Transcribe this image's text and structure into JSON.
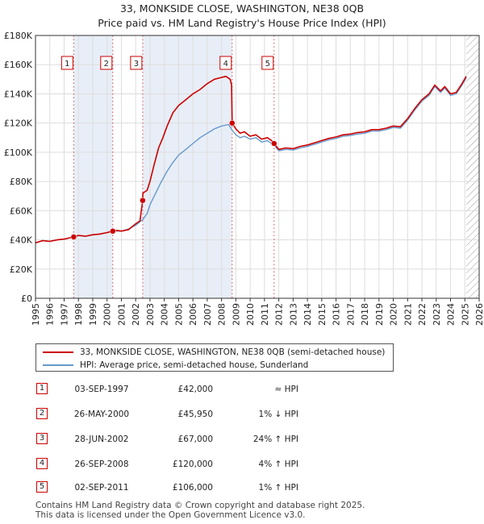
{
  "title_line1": "33, MONKSIDE CLOSE, WASHINGTON, NE38 0QB",
  "title_line2": "Price paid vs. HM Land Registry's House Price Index (HPI)",
  "colors": {
    "property_line": "#cc0000",
    "hpi_line": "#6699cc",
    "grid": "#dddddd",
    "shade": "#e8eef7",
    "marker_box": "#cc0000",
    "hatch": "#999999"
  },
  "chart_data": {
    "type": "line",
    "title": "33, MONKSIDE CLOSE, WASHINGTON, NE38 0QB — Price paid vs. HM Land Registry's House Price Index (HPI)",
    "xlim": [
      1995,
      2026
    ],
    "ylim": [
      0,
      180000
    ],
    "y_ticks": [
      0,
      20000,
      40000,
      60000,
      80000,
      100000,
      120000,
      140000,
      160000,
      180000
    ],
    "y_tick_labels": [
      "£0",
      "£20K",
      "£40K",
      "£60K",
      "£80K",
      "£100K",
      "£120K",
      "£140K",
      "£160K",
      "£180K"
    ],
    "x_ticks": [
      1995,
      1996,
      1997,
      1998,
      1999,
      2000,
      2001,
      2002,
      2003,
      2004,
      2005,
      2006,
      2007,
      2008,
      2009,
      2010,
      2011,
      2012,
      2013,
      2014,
      2015,
      2016,
      2017,
      2018,
      2019,
      2020,
      2021,
      2022,
      2023,
      2024,
      2025,
      2026
    ],
    "x_tick_labels": [
      "1995",
      "1996",
      "1997",
      "1998",
      "1999",
      "2000",
      "2001",
      "2002",
      "2003",
      "2004",
      "2005",
      "2006",
      "2007",
      "2008",
      "2009",
      "2010",
      "2011",
      "2012",
      "2013",
      "2014",
      "2015",
      "2016",
      "2017",
      "2018",
      "2019",
      "2020",
      "2021",
      "2022",
      "2023",
      "2024",
      "2025",
      "2026"
    ],
    "forecast_start": 2025.1,
    "series": [
      {
        "name": "33, MONKSIDE CLOSE, WASHINGTON, NE38 0QB (semi-detached house)",
        "x": [
          1995.0,
          1995.5,
          1996.0,
          1996.5,
          1997.0,
          1997.67,
          1998.0,
          1998.5,
          1999.0,
          1999.5,
          2000.0,
          2000.4,
          2000.7,
          2001.0,
          2001.5,
          2002.0,
          2002.3,
          2002.49,
          2002.5,
          2002.8,
          2003.0,
          2003.3,
          2003.6,
          2003.9,
          2004.2,
          2004.6,
          2005.0,
          2005.5,
          2006.0,
          2006.5,
          2007.0,
          2007.5,
          2007.9,
          2008.3,
          2008.6,
          2008.7,
          2008.74,
          2009.0,
          2009.3,
          2009.6,
          2010.0,
          2010.4,
          2010.8,
          2011.2,
          2011.5,
          2011.67,
          2012.0,
          2012.5,
          2013.0,
          2013.5,
          2014.0,
          2014.5,
          2015.0,
          2015.5,
          2016.0,
          2016.5,
          2017.0,
          2017.5,
          2018.0,
          2018.5,
          2019.0,
          2019.5,
          2020.0,
          2020.5,
          2021.0,
          2021.5,
          2022.0,
          2022.5,
          2022.9,
          2023.3,
          2023.6,
          2024.0,
          2024.4,
          2024.8,
          2025.1
        ],
        "values": [
          38000,
          39500,
          39000,
          40000,
          40500,
          42000,
          43000,
          42500,
          43500,
          44000,
          45000,
          45950,
          46500,
          46000,
          47000,
          51000,
          53000,
          67000,
          72000,
          74000,
          80000,
          92000,
          103000,
          110000,
          118000,
          127000,
          132000,
          136000,
          140000,
          143000,
          147000,
          150000,
          151000,
          152000,
          150000,
          146000,
          120000,
          116000,
          113000,
          114000,
          111000,
          112000,
          109000,
          110000,
          108000,
          106000,
          102000,
          103000,
          102500,
          104000,
          105000,
          106500,
          108000,
          109500,
          110500,
          112000,
          112500,
          113500,
          114000,
          115500,
          115500,
          116500,
          118000,
          117500,
          123000,
          130000,
          136000,
          140000,
          146000,
          142000,
          145000,
          140000,
          141000,
          147000,
          152000
        ]
      },
      {
        "name": "HPI: Average price, semi-detached house, Sunderland",
        "x": [
          1995.0,
          1995.5,
          1996.0,
          1996.5,
          1997.0,
          1997.67,
          1998.0,
          1998.5,
          1999.0,
          1999.5,
          2000.0,
          2000.4,
          2000.7,
          2001.0,
          2001.5,
          2002.0,
          2002.5,
          2002.8,
          2003.0,
          2003.4,
          2003.8,
          2004.2,
          2004.6,
          2005.0,
          2005.5,
          2006.0,
          2006.5,
          2007.0,
          2007.5,
          2008.0,
          2008.5,
          2008.74,
          2009.0,
          2009.3,
          2009.6,
          2010.0,
          2010.4,
          2010.8,
          2011.2,
          2011.5,
          2011.67,
          2012.0,
          2012.5,
          2013.0,
          2013.5,
          2014.0,
          2014.5,
          2015.0,
          2015.5,
          2016.0,
          2016.5,
          2017.0,
          2017.5,
          2018.0,
          2018.5,
          2019.0,
          2019.5,
          2020.0,
          2020.5,
          2021.0,
          2021.5,
          2022.0,
          2022.5,
          2022.9,
          2023.3,
          2023.6,
          2024.0,
          2024.4,
          2024.8,
          2025.1
        ],
        "values": [
          38000,
          39500,
          39000,
          40000,
          40500,
          42000,
          43000,
          42500,
          43500,
          44000,
          45000,
          46500,
          46000,
          46000,
          47500,
          50000,
          54000,
          58000,
          64000,
          72000,
          80000,
          87000,
          93000,
          98000,
          102000,
          106000,
          110000,
          113000,
          116000,
          118000,
          119000,
          115000,
          112000,
          110000,
          111000,
          109000,
          110000,
          107000,
          108000,
          106000,
          105000,
          101000,
          102000,
          101500,
          103000,
          104000,
          105500,
          107000,
          108500,
          109500,
          111000,
          111500,
          112500,
          113000,
          114500,
          114500,
          115500,
          117000,
          116500,
          122000,
          129000,
          135000,
          139000,
          145000,
          141000,
          144000,
          139000,
          140000,
          146000,
          151000
        ]
      }
    ],
    "sales": [
      {
        "label": "1",
        "x": 1997.67,
        "value": 42000
      },
      {
        "label": "2",
        "x": 2000.4,
        "value": 45950
      },
      {
        "label": "3",
        "x": 2002.49,
        "value": 67000
      },
      {
        "label": "4",
        "x": 2008.74,
        "value": 120000
      },
      {
        "label": "5",
        "x": 2011.67,
        "value": 106000
      }
    ]
  },
  "legend": {
    "property_label": "33, MONKSIDE CLOSE, WASHINGTON, NE38 0QB (semi-detached house)",
    "hpi_label": "HPI: Average price, semi-detached house, Sunderland"
  },
  "transactions": [
    {
      "num": "1",
      "date": "03-SEP-1997",
      "price": "£42,000",
      "hpi": "≈ HPI"
    },
    {
      "num": "2",
      "date": "26-MAY-2000",
      "price": "£45,950",
      "hpi": "1% ↓ HPI"
    },
    {
      "num": "3",
      "date": "28-JUN-2002",
      "price": "£67,000",
      "hpi": "24% ↑ HPI"
    },
    {
      "num": "4",
      "date": "26-SEP-2008",
      "price": "£120,000",
      "hpi": "4% ↑ HPI"
    },
    {
      "num": "5",
      "date": "02-SEP-2011",
      "price": "£106,000",
      "hpi": "1% ↑ HPI"
    }
  ],
  "footer": {
    "line1": "Contains HM Land Registry data © Crown copyright and database right 2025.",
    "line2": "This data is licensed under the Open Government Licence v3.0."
  }
}
